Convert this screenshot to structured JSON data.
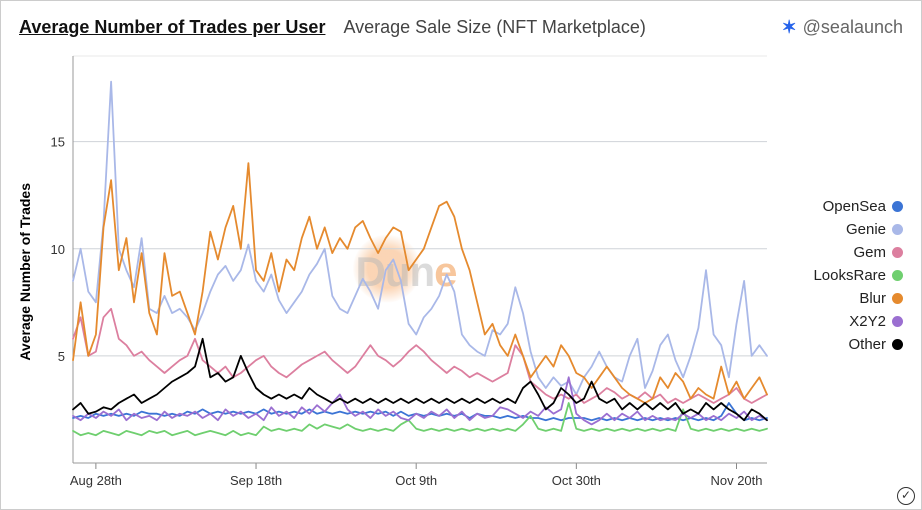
{
  "header": {
    "tab_active": "Average Number of Trades per User",
    "tab_inactive": "Average Sale Size (NFT Marketplace)",
    "handle": "@sealaunch",
    "logo_color": "#2563eb"
  },
  "chart": {
    "type": "line",
    "y_label": "Average Number of Trades",
    "ylim": [
      0,
      19
    ],
    "yticks": [
      5,
      10,
      15
    ],
    "x_categories": [
      "Aug 28th",
      "Sep 18th",
      "Oct 9th",
      "Oct 30th",
      "Nov 20th"
    ],
    "x_tick_indices": [
      3,
      24,
      45,
      66,
      87
    ],
    "n_points": 92,
    "background_color": "#ffffff",
    "grid_color": "#cfd3d8",
    "axis_fontsize": 13,
    "label_fontsize": 14,
    "line_width": 1.8,
    "watermark": "Dune",
    "series": [
      {
        "name": "OpenSea",
        "color": "#3b74d5",
        "values": [
          2.1,
          2.2,
          2.1,
          2.3,
          2.2,
          2.3,
          2.2,
          2.3,
          2.2,
          2.4,
          2.3,
          2.3,
          2.2,
          2.3,
          2.2,
          2.4,
          2.3,
          2.5,
          2.3,
          2.4,
          2.3,
          2.4,
          2.3,
          2.4,
          2.3,
          2.5,
          2.3,
          2.4,
          2.3,
          2.4,
          2.3,
          2.5,
          2.3,
          2.4,
          2.3,
          2.4,
          2.3,
          2.4,
          2.3,
          2.4,
          2.3,
          2.4,
          2.2,
          2.4,
          2.2,
          2.3,
          2.2,
          2.3,
          2.2,
          2.3,
          2.2,
          2.3,
          2.1,
          2.3,
          2.2,
          2.2,
          2.1,
          2.2,
          2.1,
          2.2,
          2.1,
          2.1,
          2.0,
          2.1,
          2.0,
          2.1,
          2.1,
          2.1,
          2.0,
          2.1,
          2.0,
          2.1,
          2.0,
          2.1,
          2.0,
          2.1,
          2.0,
          2.1,
          2.0,
          2.1,
          2.0,
          2.1,
          2.0,
          2.1,
          2.0,
          2.2,
          2.8,
          2.3,
          2.0,
          2.1,
          2.0,
          2.1
        ]
      },
      {
        "name": "Genie",
        "color": "#a9b8e8",
        "values": [
          8.5,
          10.0,
          8.0,
          7.5,
          11.2,
          17.8,
          10.0,
          9.0,
          8.2,
          10.5,
          7.2,
          7.0,
          7.8,
          7.0,
          7.2,
          6.8,
          6.2,
          7.0,
          8.0,
          8.8,
          9.2,
          8.5,
          9.0,
          10.2,
          8.5,
          8.0,
          8.8,
          7.6,
          7.0,
          7.5,
          8.0,
          8.8,
          9.3,
          10.0,
          7.8,
          7.2,
          7.0,
          7.8,
          8.6,
          8.0,
          7.2,
          9.0,
          9.5,
          8.5,
          6.5,
          6.0,
          6.8,
          7.2,
          7.8,
          8.8,
          8.0,
          6.0,
          5.5,
          5.2,
          5.0,
          6.2,
          6.0,
          6.5,
          8.2,
          7.0,
          5.2,
          4.0,
          3.5,
          4.0,
          3.6,
          3.8,
          3.2,
          4.0,
          4.5,
          5.2,
          4.5,
          4.0,
          3.8,
          5.0,
          5.8,
          3.5,
          4.3,
          5.5,
          6.0,
          4.8,
          4.0,
          5.0,
          6.3,
          9.0,
          6.0,
          5.5,
          4.0,
          6.5,
          8.5,
          5.0,
          5.5,
          5.0
        ]
      },
      {
        "name": "Gem",
        "color": "#dc7f9f",
        "values": [
          5.8,
          6.8,
          5.0,
          5.2,
          6.8,
          7.2,
          5.8,
          5.5,
          5.0,
          5.2,
          4.8,
          4.5,
          4.2,
          4.5,
          4.8,
          5.0,
          5.8,
          4.8,
          4.5,
          4.2,
          4.5,
          4.0,
          4.2,
          4.5,
          4.8,
          5.0,
          4.5,
          4.2,
          4.0,
          4.3,
          4.6,
          4.8,
          5.0,
          5.2,
          4.8,
          4.5,
          4.2,
          4.5,
          5.0,
          5.5,
          5.0,
          4.8,
          4.5,
          4.8,
          5.2,
          5.5,
          5.2,
          4.8,
          4.5,
          4.2,
          4.5,
          4.3,
          4.0,
          4.2,
          4.0,
          3.8,
          4.0,
          4.2,
          5.5,
          5.0,
          3.8,
          3.5,
          3.2,
          3.0,
          3.2,
          3.0,
          3.2,
          2.8,
          3.0,
          3.2,
          3.5,
          3.3,
          3.0,
          3.2,
          3.0,
          3.3,
          3.0,
          3.2,
          2.8,
          3.0,
          2.8,
          3.0,
          3.2,
          3.0,
          2.8,
          3.0,
          3.2,
          3.5,
          3.0,
          2.8,
          3.0,
          3.2
        ]
      },
      {
        "name": "LooksRare",
        "color": "#6fcf6f",
        "values": [
          1.5,
          1.3,
          1.4,
          1.3,
          1.5,
          1.4,
          1.3,
          1.5,
          1.4,
          1.3,
          1.5,
          1.4,
          1.5,
          1.3,
          1.4,
          1.5,
          1.3,
          1.4,
          1.5,
          1.4,
          1.3,
          1.5,
          1.3,
          1.4,
          1.3,
          1.7,
          1.5,
          1.6,
          1.5,
          1.6,
          1.5,
          1.8,
          1.6,
          1.8,
          1.7,
          1.6,
          1.8,
          1.6,
          1.5,
          1.6,
          1.5,
          1.6,
          1.5,
          1.8,
          2.0,
          1.6,
          1.5,
          1.6,
          1.5,
          1.6,
          1.5,
          1.6,
          1.5,
          1.6,
          1.5,
          1.6,
          1.5,
          1.6,
          1.5,
          1.8,
          2.2,
          1.6,
          1.5,
          1.6,
          1.5,
          2.8,
          1.6,
          1.5,
          1.6,
          1.5,
          1.6,
          1.5,
          1.6,
          1.5,
          1.6,
          1.5,
          1.6,
          1.5,
          1.6,
          1.5,
          2.5,
          1.6,
          1.5,
          1.6,
          1.5,
          1.6,
          1.5,
          1.6,
          1.5,
          1.6,
          1.5,
          1.6
        ]
      },
      {
        "name": "Blur",
        "color": "#e58a2e",
        "values": [
          4.8,
          7.5,
          5.0,
          6.0,
          11.0,
          13.2,
          9.0,
          10.5,
          7.5,
          9.8,
          7.0,
          6.0,
          9.8,
          7.8,
          8.0,
          7.0,
          6.0,
          8.0,
          10.8,
          9.5,
          11.0,
          12.0,
          10.0,
          14.0,
          9.0,
          8.5,
          9.8,
          8.0,
          9.5,
          9.0,
          10.5,
          11.5,
          10.0,
          11.0,
          9.8,
          10.5,
          10.0,
          11.0,
          11.3,
          10.5,
          9.8,
          10.5,
          11.0,
          10.8,
          9.0,
          9.5,
          10.0,
          11.0,
          12.0,
          12.2,
          11.5,
          10.0,
          9.0,
          7.5,
          6.0,
          6.5,
          5.5,
          5.0,
          6.0,
          5.0,
          4.0,
          4.5,
          5.0,
          4.5,
          5.5,
          5.0,
          4.2,
          4.0,
          3.5,
          4.0,
          4.5,
          4.0,
          3.5,
          3.2,
          3.0,
          2.8,
          3.0,
          4.0,
          3.5,
          4.2,
          3.8,
          3.0,
          3.5,
          3.2,
          3.0,
          4.5,
          3.2,
          3.8,
          3.0,
          3.5,
          4.0,
          3.2
        ]
      },
      {
        "name": "X2Y2",
        "color": "#9b6fd1",
        "values": [
          2.2,
          2.0,
          2.3,
          2.1,
          2.4,
          2.2,
          2.5,
          2.0,
          2.3,
          2.1,
          2.2,
          2.0,
          2.4,
          2.1,
          2.3,
          2.2,
          2.4,
          2.1,
          2.3,
          2.0,
          2.5,
          2.2,
          2.4,
          2.1,
          2.3,
          2.0,
          2.6,
          2.2,
          2.4,
          2.1,
          2.6,
          2.3,
          2.7,
          2.4,
          2.8,
          3.2,
          2.5,
          2.2,
          2.4,
          2.1,
          2.5,
          2.2,
          2.4,
          2.1,
          2.0,
          2.3,
          2.1,
          2.4,
          2.2,
          2.5,
          2.1,
          2.4,
          2.0,
          2.3,
          2.1,
          2.2,
          2.6,
          2.5,
          2.3,
          2.1,
          2.4,
          2.2,
          2.6,
          2.3,
          2.5,
          4.0,
          2.3,
          2.0,
          1.8,
          2.0,
          2.3,
          2.0,
          2.3,
          2.1,
          2.4,
          2.0,
          2.2,
          2.0,
          2.1,
          2.0,
          2.3,
          2.1,
          2.3,
          2.0,
          2.2,
          2.0,
          2.3,
          2.1,
          2.4,
          2.0,
          2.2,
          2.0
        ]
      },
      {
        "name": "Other",
        "color": "#000000",
        "values": [
          2.5,
          2.8,
          2.3,
          2.4,
          2.6,
          2.5,
          2.8,
          3.0,
          3.2,
          2.8,
          3.0,
          3.2,
          3.5,
          3.8,
          4.0,
          4.2,
          4.5,
          5.8,
          4.0,
          4.2,
          3.8,
          4.0,
          5.0,
          4.2,
          3.5,
          3.2,
          3.0,
          3.2,
          3.0,
          3.2,
          3.0,
          3.5,
          3.2,
          3.0,
          2.8,
          3.0,
          2.8,
          3.0,
          2.8,
          3.0,
          2.8,
          3.0,
          2.8,
          3.0,
          2.8,
          3.0,
          2.8,
          3.0,
          2.8,
          3.0,
          2.8,
          3.0,
          2.8,
          3.0,
          2.8,
          3.0,
          2.8,
          3.0,
          2.8,
          3.5,
          3.8,
          3.2,
          2.5,
          2.8,
          3.5,
          3.2,
          2.8,
          3.0,
          3.8,
          3.0,
          2.8,
          3.0,
          2.5,
          2.8,
          2.5,
          2.8,
          2.5,
          2.8,
          2.5,
          2.8,
          2.3,
          2.5,
          2.3,
          2.8,
          2.5,
          2.8,
          2.5,
          2.3,
          2.0,
          2.5,
          2.3,
          2.0
        ]
      }
    ]
  },
  "legend": {
    "items": [
      {
        "label": "OpenSea",
        "color": "#3b74d5"
      },
      {
        "label": "Genie",
        "color": "#a9b8e8"
      },
      {
        "label": "Gem",
        "color": "#dc7f9f"
      },
      {
        "label": "LooksRare",
        "color": "#6fcf6f"
      },
      {
        "label": "Blur",
        "color": "#e58a2e"
      },
      {
        "label": "X2Y2",
        "color": "#9b6fd1"
      },
      {
        "label": "Other",
        "color": "#000000"
      }
    ]
  }
}
